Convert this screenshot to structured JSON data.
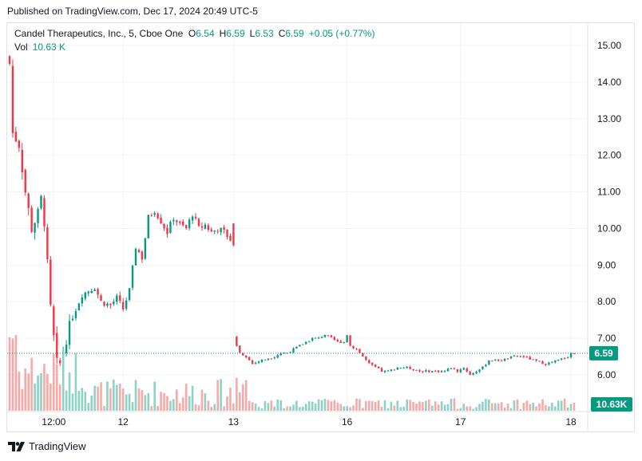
{
  "header": {
    "published": "Published on TradingView.com, Dec 17, 2024 20:49 UTC-5"
  },
  "legend": {
    "symbol": "Candel Therapeutics, Inc., 5, Cboe One",
    "o_label": "O",
    "o_value": "6.54",
    "h_label": "H",
    "h_value": "6.59",
    "l_label": "L",
    "l_value": "6.53",
    "c_label": "C",
    "c_value": "6.59",
    "change": "+0.05 (+0.77%)",
    "vol_label": "Vol",
    "vol_value": "10.63 K"
  },
  "footer": {
    "brand": "TradingView",
    "logo_icon": "tradingview-logo-icon"
  },
  "colors": {
    "up": "#089981",
    "down": "#f23645",
    "up_vol": "#8fd1c4",
    "down_vol": "#f7a9a7",
    "grid": "#f0f3fa"
  },
  "chart_data": {
    "type": "candlestick",
    "title": "Candel Therapeutics, Inc., 5, Cboe One",
    "ylim": [
      5.4,
      15.4
    ],
    "y_ticks": [
      "15.00",
      "14.00",
      "13.00",
      "12.00",
      "11.00",
      "10.00",
      "9.00",
      "8.00",
      "7.00",
      "6.00"
    ],
    "x_ticks": [
      {
        "label": "12:00",
        "index": 14
      },
      {
        "label": "12",
        "index": 36
      },
      {
        "label": "13",
        "index": 71
      },
      {
        "label": "16",
        "index": 107
      },
      {
        "label": "17",
        "index": 143
      },
      {
        "label": "18",
        "index": 178
      }
    ],
    "last_price": "6.59",
    "last_volume": "10.63K",
    "price_path": [
      [
        0,
        14.5
      ],
      [
        1,
        12.6
      ],
      [
        3,
        12.3
      ],
      [
        5,
        11.0
      ],
      [
        7,
        10.0
      ],
      [
        9,
        10.4
      ],
      [
        10,
        10.8
      ],
      [
        11,
        10.2
      ],
      [
        12,
        9.0
      ],
      [
        13,
        7.8
      ],
      [
        14,
        7.0
      ],
      [
        15,
        6.3
      ],
      [
        16,
        6.3
      ],
      [
        18,
        7.0
      ],
      [
        20,
        7.6
      ],
      [
        23,
        8.2
      ],
      [
        25,
        8.3
      ],
      [
        27,
        8.4
      ],
      [
        29,
        8.0
      ],
      [
        32,
        7.9
      ],
      [
        34,
        8.1
      ],
      [
        36,
        7.8
      ],
      [
        38,
        8.3
      ],
      [
        40,
        9.5
      ],
      [
        42,
        9.2
      ],
      [
        44,
        10.3
      ],
      [
        46,
        10.5
      ],
      [
        48,
        10.2
      ],
      [
        50,
        9.9
      ],
      [
        52,
        10.3
      ],
      [
        54,
        10.1
      ],
      [
        56,
        10.0
      ],
      [
        58,
        10.4
      ],
      [
        60,
        10.0
      ],
      [
        62,
        10.1
      ],
      [
        64,
        9.9
      ],
      [
        66,
        10.0
      ],
      [
        68,
        9.9
      ],
      [
        70,
        9.7
      ],
      [
        71,
        9.5
      ],
      [
        72,
        6.8
      ],
      [
        73,
        6.6
      ],
      [
        75,
        6.5
      ],
      [
        77,
        6.3
      ],
      [
        80,
        6.4
      ],
      [
        84,
        6.5
      ],
      [
        86,
        6.6
      ],
      [
        88,
        6.6
      ],
      [
        90,
        6.7
      ],
      [
        92,
        6.8
      ],
      [
        94,
        6.9
      ],
      [
        96,
        7.0
      ],
      [
        98,
        7.0
      ],
      [
        100,
        7.1
      ],
      [
        102,
        7.0
      ],
      [
        104,
        6.9
      ],
      [
        106,
        6.9
      ],
      [
        107,
        7.1
      ],
      [
        108,
        6.8
      ],
      [
        110,
        6.7
      ],
      [
        112,
        6.5
      ],
      [
        114,
        6.3
      ],
      [
        116,
        6.2
      ],
      [
        118,
        6.1
      ],
      [
        120,
        6.1
      ],
      [
        123,
        6.2
      ],
      [
        126,
        6.2
      ],
      [
        130,
        6.1
      ],
      [
        134,
        6.1
      ],
      [
        138,
        6.1
      ],
      [
        140,
        6.2
      ],
      [
        142,
        6.1
      ],
      [
        144,
        6.2
      ],
      [
        146,
        6.0
      ],
      [
        148,
        6.1
      ],
      [
        150,
        6.2
      ],
      [
        152,
        6.4
      ],
      [
        156,
        6.4
      ],
      [
        160,
        6.5
      ],
      [
        163,
        6.5
      ],
      [
        166,
        6.4
      ],
      [
        170,
        6.3
      ],
      [
        174,
        6.4
      ],
      [
        177,
        6.5
      ],
      [
        178,
        6.59
      ]
    ]
  }
}
